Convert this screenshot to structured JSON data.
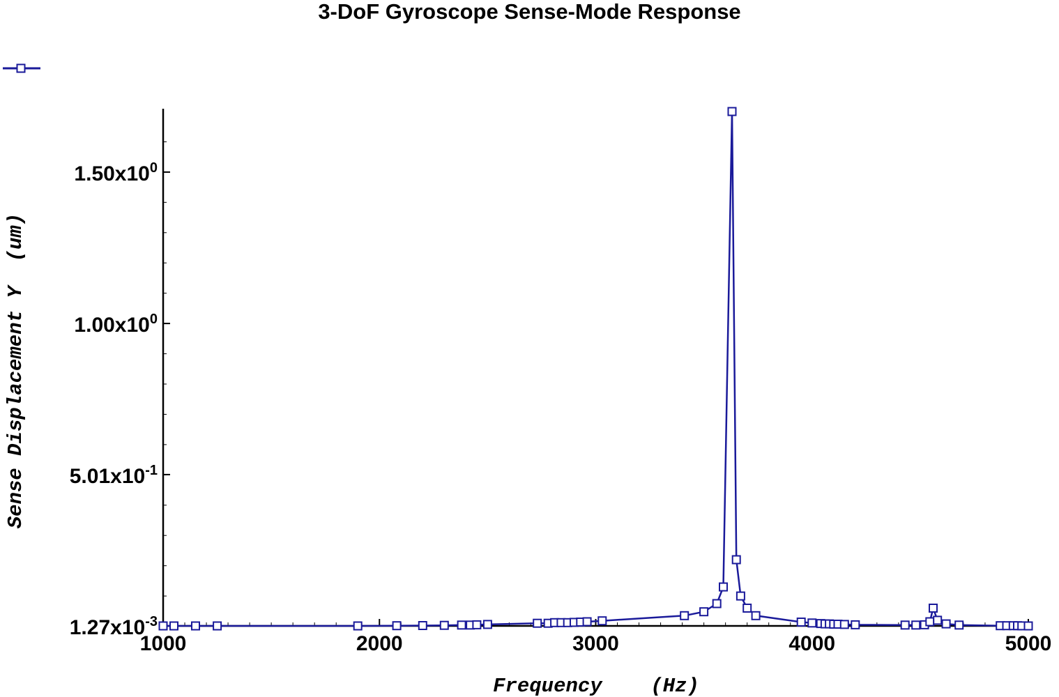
{
  "chart_data": {
    "type": "line",
    "title": "3-DoF Gyroscope Sense-Mode Response",
    "xlabel": "Frequency    (Hz)",
    "ylabel": "Sense Displacement Y  (um)",
    "xlim": [
      1000,
      5000
    ],
    "ylim": [
      0.00127,
      1.7
    ],
    "grid": false,
    "legend": "top-left",
    "line_color": "#1a1a9a",
    "x_ticks": [
      {
        "value": 1000,
        "label": "1000"
      },
      {
        "value": 2000,
        "label": "2000"
      },
      {
        "value": 3000,
        "label": "3000"
      },
      {
        "value": 4000,
        "label": "4000"
      },
      {
        "value": 5000,
        "label": "5000"
      }
    ],
    "y_ticks": [
      {
        "value": 0.00127,
        "mantissa": "1.27x10",
        "exp": "-3"
      },
      {
        "value": 0.501,
        "mantissa": "5.01x10",
        "exp": "-1"
      },
      {
        "value": 1.0,
        "mantissa": "1.00x10",
        "exp": "0"
      },
      {
        "value": 1.5,
        "mantissa": "1.50x10",
        "exp": "0"
      }
    ],
    "series": [
      {
        "marker": "square",
        "x": [
          1000,
          1050,
          1150,
          1250,
          1900,
          2080,
          2200,
          2300,
          2380,
          2420,
          2450,
          2500,
          2730,
          2780,
          2810,
          2840,
          2870,
          2900,
          2930,
          2960,
          3030,
          3410,
          3500,
          3560,
          3590,
          3630,
          3650,
          3670,
          3700,
          3740,
          3950,
          4000,
          4040,
          4060,
          4080,
          4100,
          4120,
          4150,
          4200,
          4430,
          4480,
          4520,
          4545,
          4560,
          4580,
          4620,
          4680,
          4870,
          4900,
          4930,
          4950,
          4970,
          5000
        ],
        "y": [
          0.0013,
          0.0013,
          0.0013,
          0.0013,
          0.0013,
          0.002,
          0.0025,
          0.003,
          0.004,
          0.004,
          0.005,
          0.006,
          0.01,
          0.01,
          0.012,
          0.012,
          0.012,
          0.013,
          0.014,
          0.015,
          0.018,
          0.035,
          0.048,
          0.075,
          0.13,
          1.7,
          0.22,
          0.1,
          0.06,
          0.035,
          0.014,
          0.011,
          0.009,
          0.008,
          0.008,
          0.007,
          0.007,
          0.006,
          0.005,
          0.004,
          0.004,
          0.005,
          0.015,
          0.06,
          0.02,
          0.008,
          0.004,
          0.002,
          0.002,
          0.002,
          0.002,
          0.0015,
          0.0013
        ]
      }
    ]
  }
}
